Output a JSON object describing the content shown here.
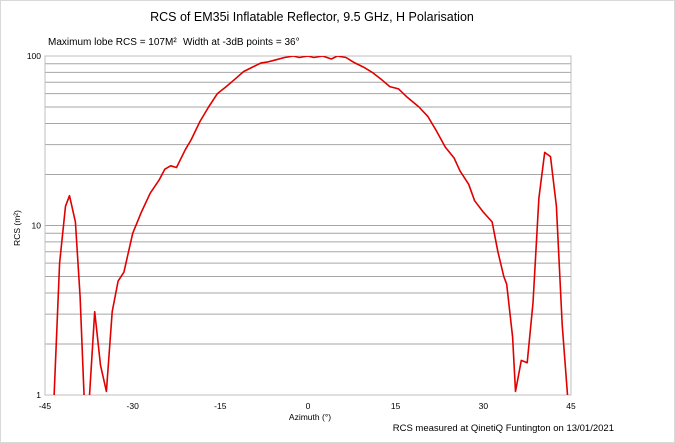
{
  "chart_data": {
    "type": "line",
    "title": "RCS of EM35i Inflatable Reflector, 9.5 GHz, H Polarisation",
    "annotation_max": "Maximum lobe RCS = 107M²",
    "annotation_width": "Width at -3dB points =  36°",
    "footnote": "RCS measured at QinetiQ Funtington on 13/01/2021",
    "xlabel": "Azimuth (°)",
    "ylabel": "RCS  (m²)",
    "xlim": [
      -45,
      45
    ],
    "ylim": [
      1,
      100
    ],
    "yscale": "log",
    "xticks": [
      -45,
      -30,
      -15,
      0,
      15,
      30,
      45
    ],
    "xtick_labels": [
      "-45",
      "-30",
      "-15",
      "0",
      "15",
      "30",
      "45"
    ],
    "yticks": [
      1,
      10,
      100
    ],
    "ytick_labels": [
      "1",
      "10",
      "100"
    ],
    "grid": "horizontal",
    "line_color": "#e00000",
    "series": [
      {
        "x": [
          -43.5,
          -42.5,
          -41.5,
          -40.8,
          -39.8,
          -39,
          -38.2,
          -37.5,
          -36.5,
          -35.5,
          -34.5,
          -33.5,
          -32.5,
          -31.5,
          -30,
          -28.5,
          -27,
          -25.5,
          -24.5,
          -23.5,
          -22.5,
          -21,
          -20,
          -18.5,
          -17,
          -15.5,
          -14,
          -12.5,
          -11,
          -9.5,
          -8,
          -7,
          -5.5,
          -4,
          -2.5,
          -1.5,
          0,
          1,
          2.5,
          4,
          5,
          6.5,
          8,
          9.5,
          11,
          12.5,
          14,
          15.5,
          17,
          19,
          20.5,
          22,
          23.5,
          25,
          26,
          27.5,
          28.5,
          30,
          31.5,
          32.5,
          33.5,
          34,
          35,
          35.5,
          36.5,
          37.5,
          38.5,
          39.5,
          40.5,
          41.5,
          42.5,
          43.5,
          44.5
        ],
        "y": [
          0.9,
          6,
          13,
          15,
          10.5,
          3.8,
          0.8,
          0.85,
          3.1,
          1.5,
          1.05,
          3.1,
          4.7,
          5.3,
          9,
          12,
          15.5,
          18.5,
          21.5,
          22.5,
          22,
          28,
          32,
          41,
          50,
          60,
          66,
          73,
          81,
          86,
          91,
          92,
          95,
          98,
          100,
          98,
          100,
          98,
          100,
          96,
          100,
          98,
          91,
          86,
          80,
          73,
          66,
          64,
          57,
          50,
          44,
          36,
          29,
          25,
          21,
          17.5,
          14,
          12,
          10.5,
          7,
          5,
          4.5,
          2.2,
          1.05,
          1.6,
          1.55,
          3.5,
          14.5,
          27,
          25.5,
          13,
          2.6,
          0.9
        ]
      }
    ]
  }
}
